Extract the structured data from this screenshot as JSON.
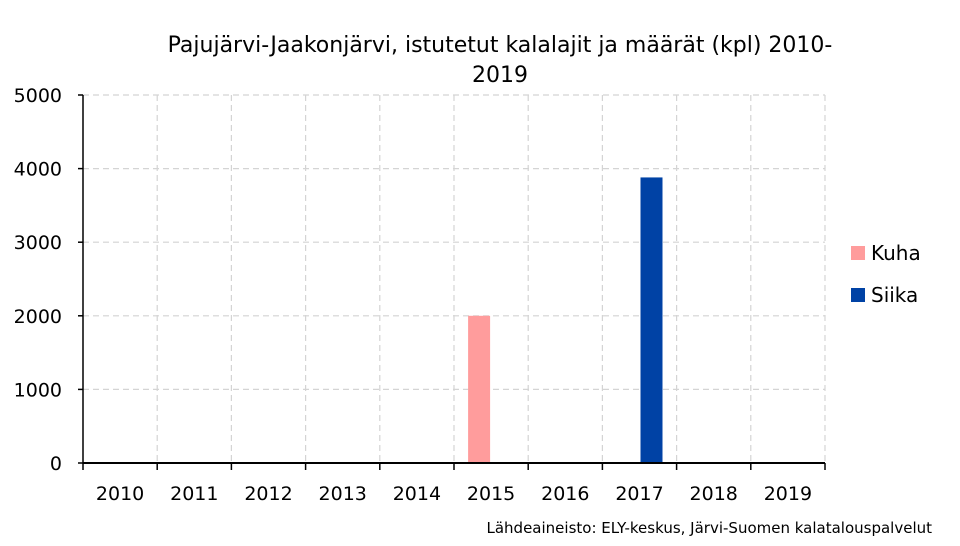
{
  "chart_data": {
    "type": "bar",
    "title_line1": "Pajujärvi-Jaakonjärvi, istutetut kalalajit ja määrät (kpl) 2010-",
    "title_line2": "2019",
    "categories": [
      "2010",
      "2011",
      "2012",
      "2013",
      "2014",
      "2015",
      "2016",
      "2017",
      "2018",
      "2019"
    ],
    "series": [
      {
        "name": "Kuha",
        "color": "#ff9c9c",
        "values": [
          0,
          0,
          0,
          0,
          0,
          2000,
          0,
          0,
          0,
          0
        ]
      },
      {
        "name": "Siika",
        "color": "#0042a5",
        "values": [
          0,
          0,
          0,
          0,
          0,
          0,
          0,
          3880,
          0,
          0
        ]
      }
    ],
    "ylim": [
      0,
      5000
    ],
    "yticks": [
      "0",
      "1000",
      "2000",
      "3000",
      "4000",
      "5000"
    ],
    "grid": true,
    "legend_position": "right",
    "source": "Lähdeaineisto: ELY-keskus, Järvi-Suomen kalatalouspalvelut"
  }
}
